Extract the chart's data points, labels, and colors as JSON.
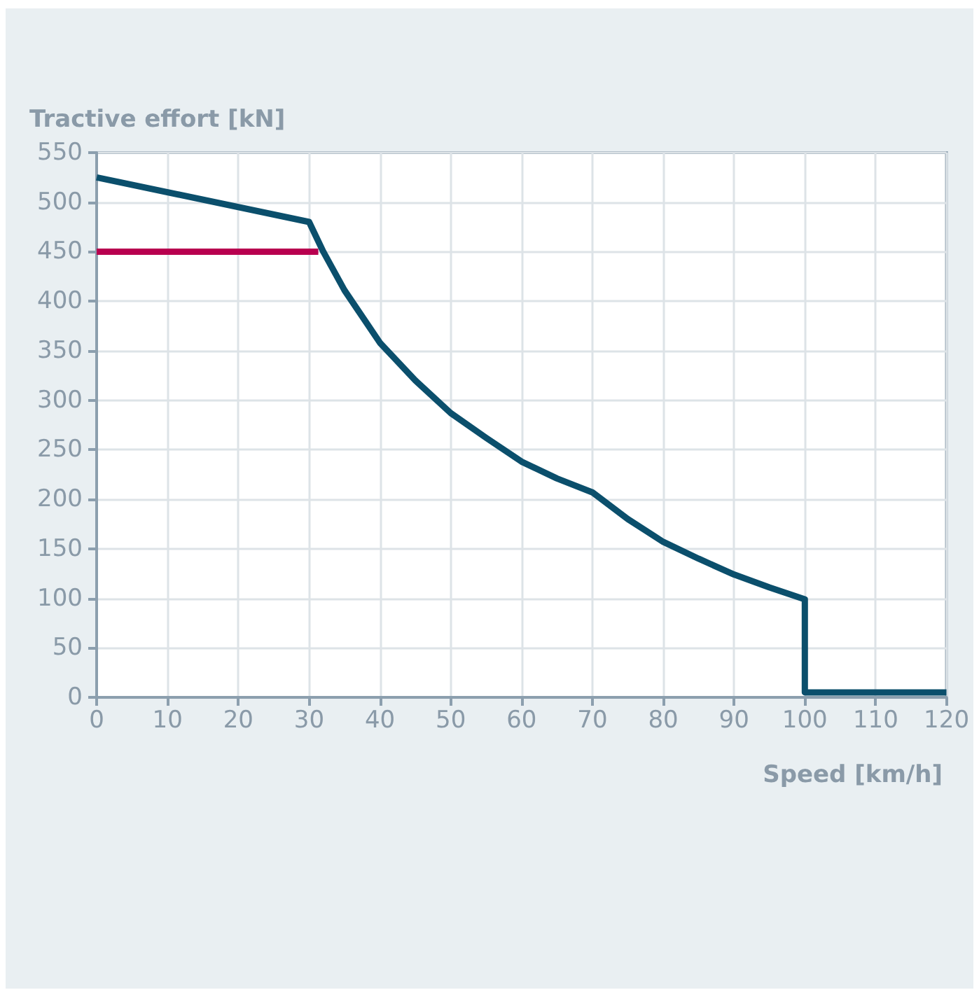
{
  "chart_data": {
    "type": "line",
    "xlabel": "Speed [km/h]",
    "ylabel": "Tractive effort [kN]",
    "xlim": [
      0,
      120
    ],
    "xticks": [
      0,
      10,
      20,
      30,
      40,
      50,
      60,
      70,
      80,
      90,
      100,
      110,
      120
    ],
    "ylim": [
      0,
      550
    ],
    "yticks": [
      0,
      50,
      100,
      150,
      200,
      250,
      300,
      350,
      400,
      450,
      500,
      550
    ],
    "grid": true,
    "marker": "none",
    "line_style": "solid",
    "series": [
      {
        "color": "#0b4f6c",
        "x": [
          0,
          30,
          32,
          35,
          40,
          45,
          50,
          55,
          60,
          65,
          70,
          75,
          80,
          85,
          90,
          95,
          100,
          100,
          120
        ],
        "values": [
          525,
          480,
          450,
          411,
          358,
          320,
          287,
          262,
          238,
          221,
          207,
          180,
          157,
          140,
          124,
          111,
          99,
          5,
          5
        ]
      },
      {
        "color": "#b8004f",
        "x": [
          0,
          31.3
        ],
        "values": [
          450,
          450
        ]
      }
    ]
  }
}
